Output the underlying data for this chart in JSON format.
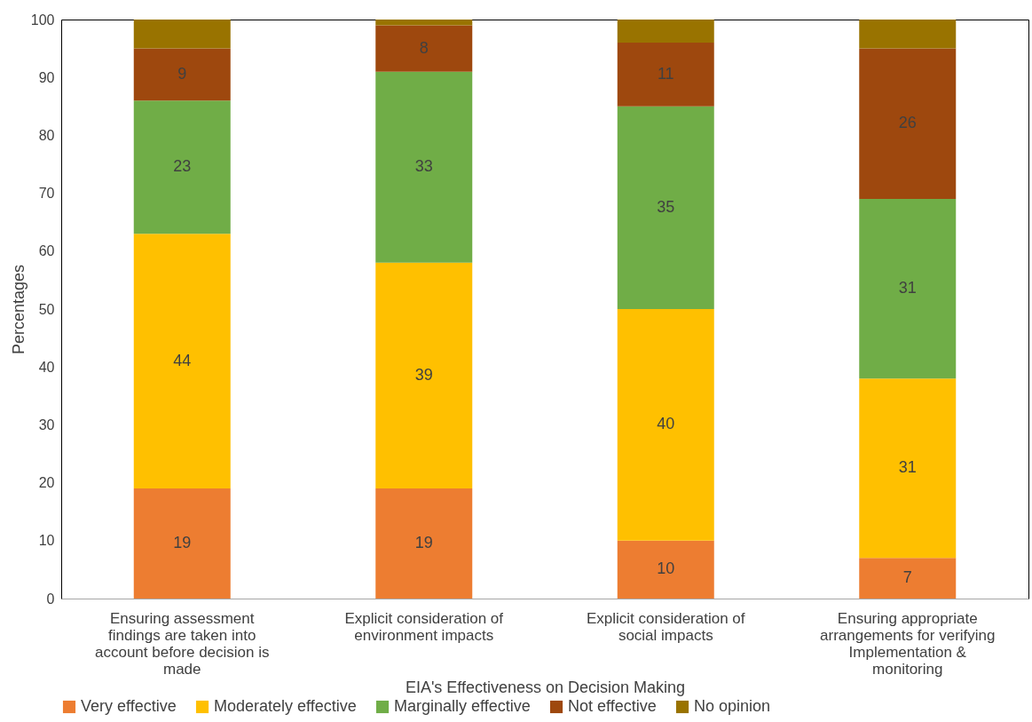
{
  "chart_data": {
    "type": "bar",
    "stacked": true,
    "xlabel": "EIA's Effectiveness on Decision Making",
    "ylabel": "Percentages",
    "categories": [
      "Ensuring assessment findings are taken into account before decision is made",
      "Explicit consideration of environment impacts",
      "Explicit consideration of social impacts",
      "Ensuring appropriate arrangements for verifying Implementation & monitoring"
    ],
    "ylim": [
      0,
      100
    ],
    "yticks": [
      0,
      10,
      20,
      30,
      40,
      50,
      60,
      70,
      80,
      90,
      100
    ],
    "grid": false,
    "legend": "bottom",
    "series": [
      {
        "name": "Very effective",
        "color": "#ed7d31",
        "values": [
          19,
          19,
          10,
          7
        ],
        "value_labels": [
          "19",
          "19",
          "10",
          "7"
        ]
      },
      {
        "name": "Moderately effective",
        "color": "#ffc000",
        "values": [
          44,
          39,
          40,
          31
        ],
        "value_labels": [
          "44",
          "39",
          "40",
          "31"
        ]
      },
      {
        "name": "Marginally effective",
        "color": "#70ad47",
        "values": [
          23,
          33,
          35,
          31
        ],
        "value_labels": [
          "23",
          "33",
          "35",
          "31"
        ]
      },
      {
        "name": "Not effective",
        "color": "#9e480e",
        "values": [
          9,
          8,
          11,
          26
        ],
        "value_labels": [
          "9",
          "8",
          "11",
          "26"
        ]
      },
      {
        "name": "No opinion",
        "color": "#997300",
        "values": [
          5,
          1,
          4,
          5
        ],
        "value_labels": [
          null,
          null,
          null,
          null
        ]
      }
    ]
  }
}
